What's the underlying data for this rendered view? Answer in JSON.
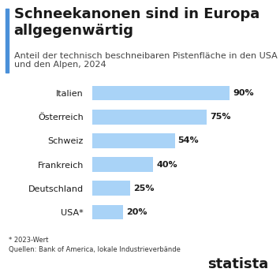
{
  "chart_data": {
    "type": "bar",
    "title": "Schneekanonen sind in Europa allgegenwärtig",
    "subtitle": "Anteil der technisch beschneibaren Pistenfläche in den USA und den Alpen, 2024",
    "categories": [
      "Italien",
      "Österreich",
      "Schweiz",
      "Frankreich",
      "Deutschland",
      "USA*"
    ],
    "values": [
      90,
      75,
      54,
      40,
      25,
      20
    ],
    "value_labels": [
      "90%",
      "75%",
      "54%",
      "40%",
      "25%",
      "20%"
    ],
    "color": "#a9d3f7",
    "orientation": "horizontal",
    "data_labels": true,
    "tick_labels": "y",
    "xlim": [
      0,
      90
    ],
    "xticks": [],
    "annotations": [
      "* 2023-Wert",
      "Quellen: Bank of America, lokale Industrieverbände",
      "statista"
    ]
  }
}
